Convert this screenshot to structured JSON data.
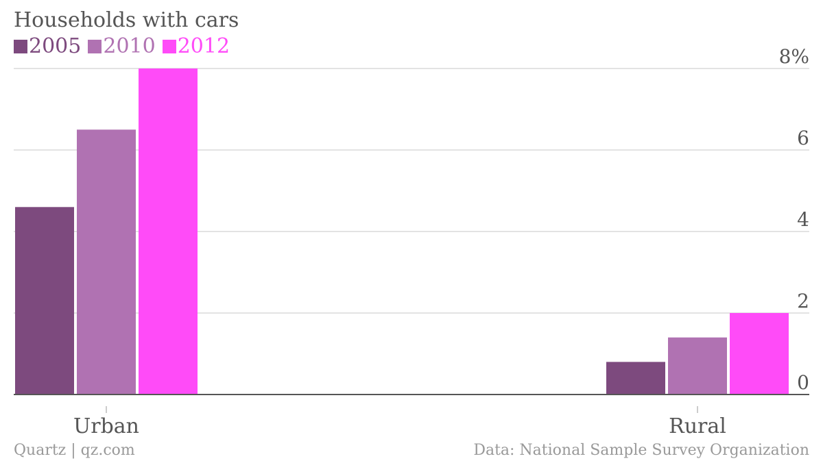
{
  "title": "Households with cars",
  "footer": {
    "source_left": "Quartz | qz.com",
    "source_right": "Data: National Sample Survey Organization"
  },
  "chart_data": {
    "type": "bar",
    "title": "Households with cars",
    "categories": [
      "Urban",
      "Rural"
    ],
    "series": [
      {
        "name": "2005",
        "color": "#7d4a7e",
        "values": [
          4.6,
          0.8
        ]
      },
      {
        "name": "2010",
        "color": "#b072b2",
        "values": [
          6.5,
          1.4
        ]
      },
      {
        "name": "2012",
        "color": "#ff4bf8",
        "values": [
          8.0,
          2.0
        ]
      }
    ],
    "ylim": [
      0,
      8
    ],
    "yticks": [
      0,
      2,
      4,
      6,
      8
    ],
    "ytick_labels": [
      "0",
      "2",
      "4",
      "6",
      "8%"
    ],
    "grid": true,
    "axis_side": "right",
    "legend_position": "top-left"
  }
}
